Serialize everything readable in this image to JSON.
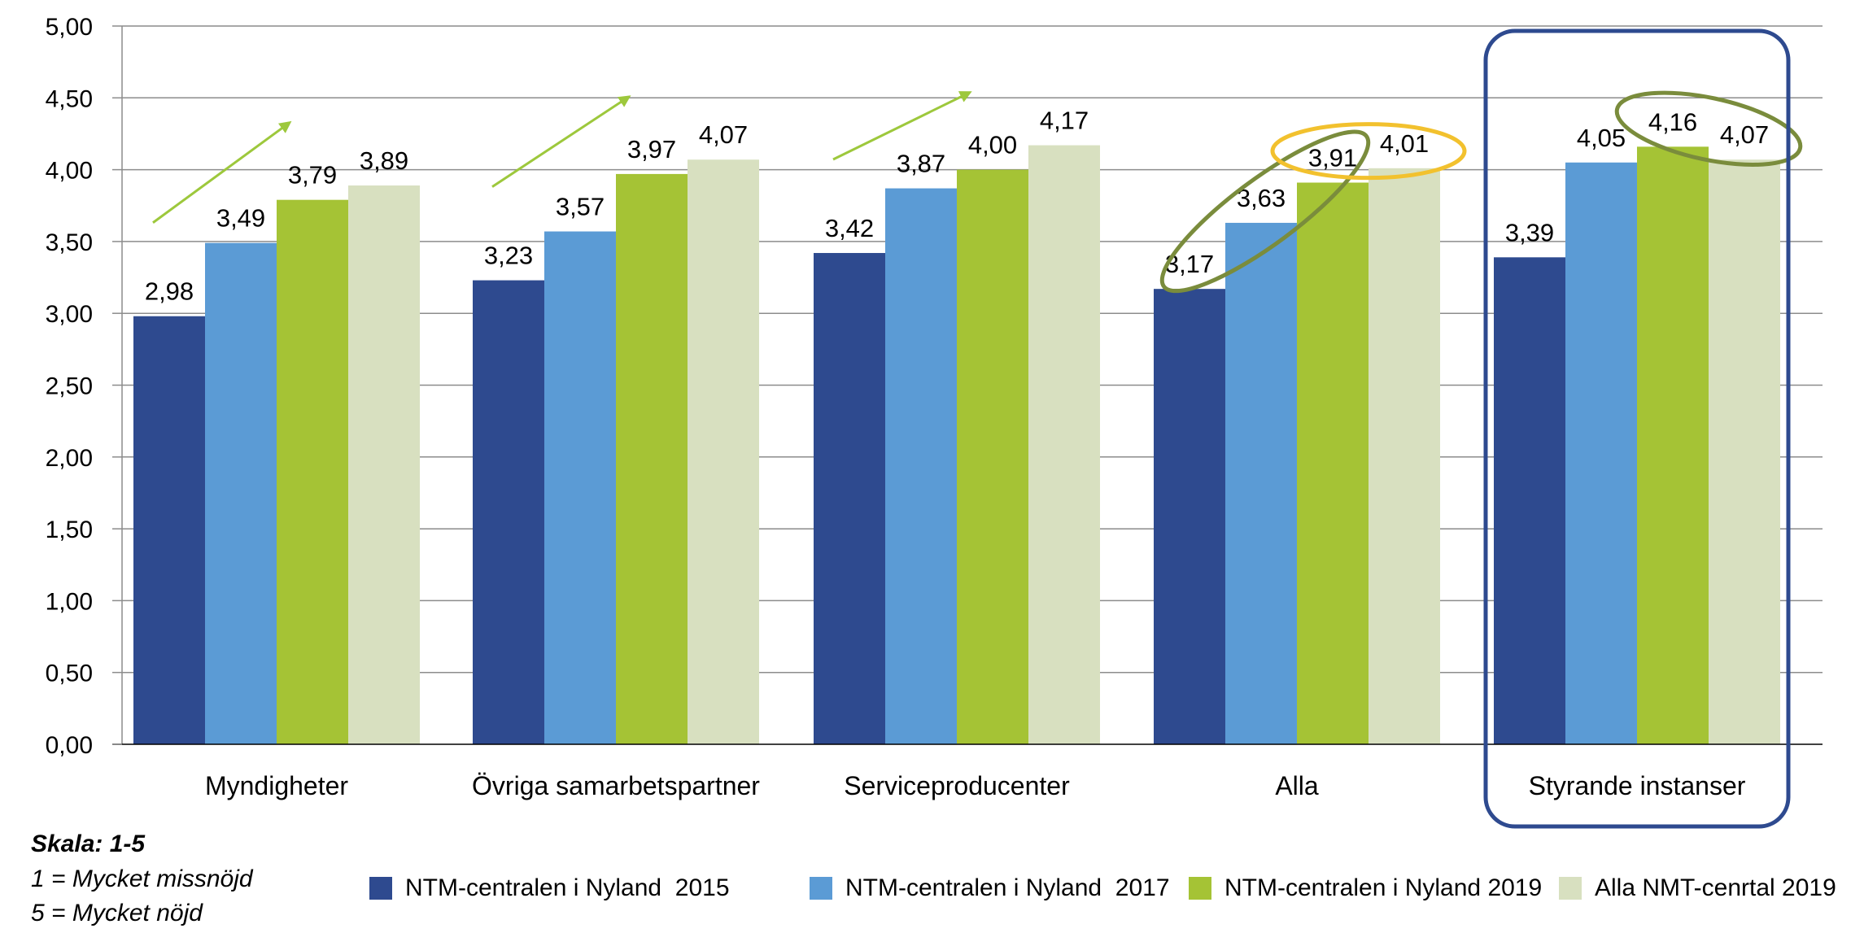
{
  "chart_data": {
    "type": "bar",
    "categories": [
      "Myndigheter",
      "Övriga samarbetspartner",
      "Serviceproducenter",
      "Alla",
      "Styrande instanser"
    ],
    "series": [
      {
        "name": "NTM-centralen i Nyland  2015",
        "color": "#2E4A8F",
        "values": [
          2.98,
          3.23,
          3.42,
          3.17,
          3.39
        ]
      },
      {
        "name": "NTM-centralen i Nyland  2017",
        "color": "#5B9BD5",
        "values": [
          3.49,
          3.57,
          3.87,
          3.63,
          4.05
        ]
      },
      {
        "name": "NTM-centralen i Nyland 2019",
        "color": "#A5C335",
        "values": [
          3.79,
          3.97,
          4.0,
          3.91,
          4.16
        ]
      },
      {
        "name": "Alla NMT-cenrtal 2019",
        "color": "#D8E0C0",
        "values": [
          3.89,
          4.07,
          4.17,
          4.01,
          4.07
        ]
      }
    ],
    "data_labels": [
      [
        "2,98",
        "3,49",
        "3,79",
        "3,89"
      ],
      [
        "3,23",
        "3,57",
        "3,97",
        "4,07"
      ],
      [
        "3,42",
        "3,87",
        "4,00",
        "4,17"
      ],
      [
        "3,17",
        "3,63",
        "3,91",
        "4,01"
      ],
      [
        "3,39",
        "4,05",
        "4,16",
        "4,07"
      ]
    ],
    "yticks": [
      "0,00",
      "0,50",
      "1,00",
      "1,50",
      "2,00",
      "2,50",
      "3,00",
      "3,50",
      "4,00",
      "4,50",
      "5,00"
    ],
    "ylim": [
      0,
      5
    ],
    "grid": true,
    "legend_position": "bottom"
  },
  "scale_note": {
    "title": "Skala: 1-5",
    "low": "1 = Mycket missnöjd",
    "high": "5 = Mycket nöjd"
  },
  "annotations": {
    "trend_arrow_color": "#9DC83C",
    "ellipse_olive_color": "#7A8C3C",
    "ellipse_yellow_color": "#F2C12E",
    "highlight_box_color": "#2E4A8F",
    "highlight_group": "Styrande instanser"
  }
}
